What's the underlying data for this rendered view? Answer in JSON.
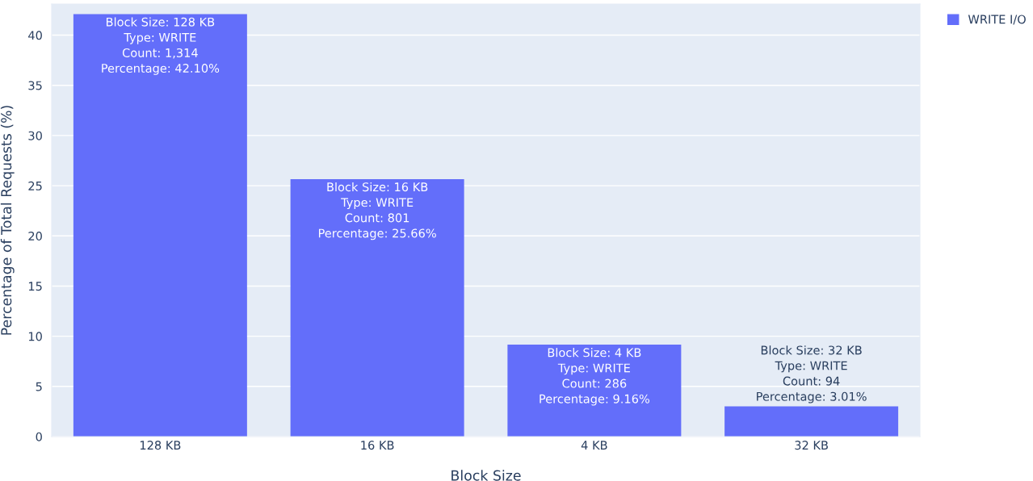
{
  "chart_data": {
    "type": "bar",
    "xlabel": "Block Size",
    "ylabel": "Percentage of Total Requests (%)",
    "categories": [
      "128 KB",
      "16 KB",
      "4 KB",
      "32 KB"
    ],
    "series": [
      {
        "name": "WRITE I/O",
        "color": "#636efa",
        "values": [
          42.1,
          25.66,
          9.16,
          3.01
        ],
        "value_labels": [
          "Block Size: 128 KB\nType: WRITE\nCount: 1,314\nPercentage: 42.10%",
          "Block Size: 16 KB\nType: WRITE\nCount: 801\nPercentage: 25.66%",
          "Block Size: 4 KB\nType: WRITE\nCount: 286\nPercentage: 9.16%",
          "Block Size: 32 KB\nType: WRITE\nCount: 94\nPercentage: 3.01%"
        ]
      }
    ],
    "ylim": [
      0,
      43.1
    ],
    "yticks": [
      0,
      5,
      10,
      15,
      20,
      25,
      30,
      35,
      40
    ],
    "grid": "y",
    "legend": "top right"
  }
}
